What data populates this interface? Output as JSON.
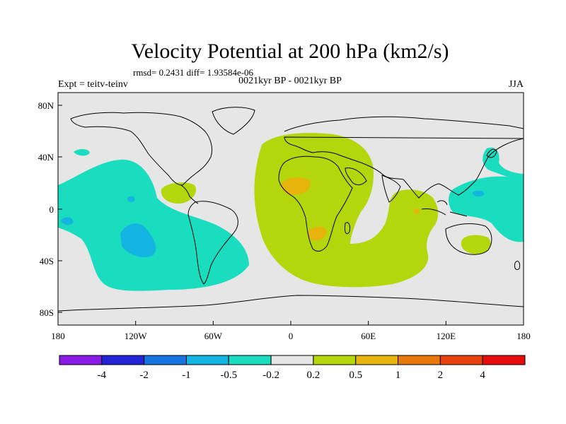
{
  "title": "Velocity Potential at 200 hPa (km2/s)",
  "stats_line": "rmsd= 0.2431 diff= 1.93584e-06",
  "left_label": "Expt = teitv-teinv",
  "center_label": "0021kyr BP - 0021kyr BP",
  "right_label": "JJA",
  "map": {
    "projection": "cylindrical-equidistant",
    "lon_range": [
      -180,
      180
    ],
    "lat_range": [
      -90,
      90
    ],
    "x_ticks": [
      "180",
      "120W",
      "60W",
      "0",
      "60E",
      "120E",
      "180"
    ],
    "y_ticks": [
      "80N",
      "40N",
      "0",
      "40S",
      "80S"
    ]
  },
  "colorbar": {
    "colors": [
      "#8a1be6",
      "#2323d6",
      "#1673e0",
      "#14b4e0",
      "#1adcbe",
      "#e6e6e6",
      "#b4d60c",
      "#e6b40c",
      "#e6780c",
      "#e6400c",
      "#e60c0c"
    ],
    "labels": [
      "-4",
      "-2",
      "-1",
      "-0.5",
      "-0.2",
      "0.2",
      "0.5",
      "1",
      "2",
      "4"
    ]
  }
}
